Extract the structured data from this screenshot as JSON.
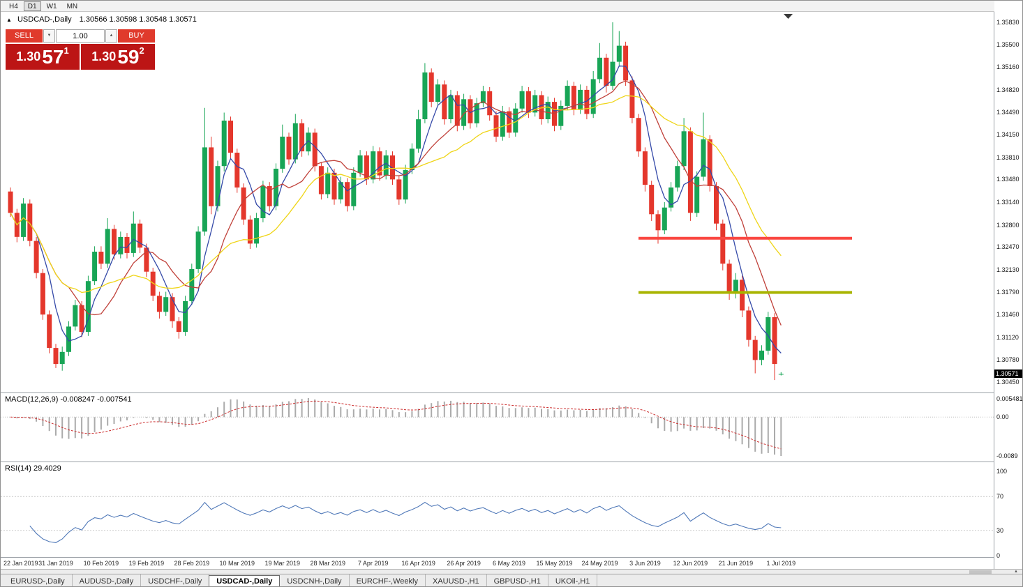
{
  "toolbar": {
    "timeframes": [
      {
        "label": "H4",
        "active": false
      },
      {
        "label": "D1",
        "active": true
      },
      {
        "label": "W1",
        "active": false
      },
      {
        "label": "MN",
        "active": false
      }
    ]
  },
  "chart": {
    "symbol": "USDCAD-,Daily",
    "ohlc": "1.30566 1.30598 1.30548 1.30571",
    "toggle_icon": "▲"
  },
  "trade_panel": {
    "sell_label": "SELL",
    "buy_label": "BUY",
    "volume": "1.00",
    "spinner_down": "▼",
    "spinner_up": "▲",
    "sell_price": {
      "base": "1.30",
      "pips": "57",
      "sup": "1"
    },
    "buy_price": {
      "base": "1.30",
      "pips": "59",
      "sup": "2"
    }
  },
  "price_axis": {
    "labels": [
      "1.35830",
      "1.35500",
      "1.35160",
      "1.34820",
      "1.34490",
      "1.34150",
      "1.33810",
      "1.33480",
      "1.33140",
      "1.32800",
      "1.32470",
      "1.32130",
      "1.31790",
      "1.31460",
      "1.31120",
      "1.30780",
      "1.30450"
    ],
    "current": "1.30571"
  },
  "macd_panel": {
    "label": "MACD(12,26,9)",
    "values": "-0.008247 -0.007541",
    "axis_top": "0.005481",
    "axis_zero": "0.00",
    "axis_bottom": "-0.0089"
  },
  "rsi_panel": {
    "label": "RSI(14)",
    "value": "29.4029",
    "axis": [
      {
        "v": 100,
        "label": "100"
      },
      {
        "v": 70,
        "label": "70"
      },
      {
        "v": 30,
        "label": "30"
      },
      {
        "v": 0,
        "label": "0"
      }
    ],
    "levels": [
      70,
      30
    ]
  },
  "date_axis": {
    "labels": [
      "22 Jan 2019",
      "31 Jan 2019",
      "10 Feb 2019",
      "19 Feb 2019",
      "28 Feb 2019",
      "10 Mar 2019",
      "19 Mar 2019",
      "28 Mar 2019",
      "7 Apr 2019",
      "16 Apr 2019",
      "26 Apr 2019",
      "6 May 2019",
      "15 May 2019",
      "24 May 2019",
      "3 Jun 2019",
      "12 Jun 2019",
      "21 Jun 2019",
      "1 Jul 2019"
    ]
  },
  "tabs": [
    {
      "label": "EURUSD-,Daily",
      "active": false
    },
    {
      "label": "AUDUSD-,Daily",
      "active": false
    },
    {
      "label": "USDCHF-,Daily",
      "active": false
    },
    {
      "label": "USDCAD-,Daily",
      "active": true
    },
    {
      "label": "USDCNH-,Daily",
      "active": false
    },
    {
      "label": "EURCHF-,Weekly",
      "active": false
    },
    {
      "label": "XAUUSD-,H1",
      "active": false
    },
    {
      "label": "GBPUSD-,H1",
      "active": false
    },
    {
      "label": "UKOil-,H1",
      "active": false
    }
  ],
  "misc": {
    "axis_arrow": "▲"
  },
  "chart_data": {
    "type": "candlestick",
    "title": "USDCAD-,Daily",
    "ylim": [
      1.304,
      1.3595
    ],
    "bull_color": "#18a556",
    "bear_color": "#e4372c",
    "moving_averages": [
      {
        "period": 5,
        "color": "#3449a8"
      },
      {
        "period": 10,
        "color": "#c0413a"
      },
      {
        "period": 20,
        "color": "#efd518"
      }
    ],
    "hlines": [
      {
        "price": 1.326,
        "color": "#fa4741",
        "from_bar": 97,
        "to_bar": 130
      },
      {
        "price": 1.3179,
        "color": "#a8b400",
        "from_bar": 97,
        "to_bar": 130
      }
    ],
    "candles": [
      [
        1.333,
        1.3336,
        1.3292,
        1.3298
      ],
      [
        1.3298,
        1.3304,
        1.3254,
        1.3262
      ],
      [
        1.3262,
        1.332,
        1.3256,
        1.3312
      ],
      [
        1.3312,
        1.3318,
        1.3248,
        1.3256
      ],
      [
        1.3256,
        1.3262,
        1.32,
        1.3208
      ],
      [
        1.3208,
        1.3214,
        1.3138,
        1.3146
      ],
      [
        1.3146,
        1.3152,
        1.3088,
        1.3096
      ],
      [
        1.3096,
        1.3102,
        1.3066,
        1.3072
      ],
      [
        1.3072,
        1.3098,
        1.3062,
        1.309
      ],
      [
        1.309,
        1.3136,
        1.3084,
        1.3128
      ],
      [
        1.3128,
        1.3168,
        1.3122,
        1.316
      ],
      [
        1.316,
        1.3166,
        1.3112,
        1.312
      ],
      [
        1.312,
        1.3204,
        1.3114,
        1.3196
      ],
      [
        1.3196,
        1.3248,
        1.319,
        1.324
      ],
      [
        1.324,
        1.3248,
        1.3214,
        1.3222
      ],
      [
        1.3222,
        1.329,
        1.3216,
        1.3274
      ],
      [
        1.3274,
        1.328,
        1.3228,
        1.3236
      ],
      [
        1.3236,
        1.327,
        1.323,
        1.3262
      ],
      [
        1.3262,
        1.3268,
        1.323,
        1.3238
      ],
      [
        1.3238,
        1.33,
        1.3232,
        1.3282
      ],
      [
        1.3282,
        1.3288,
        1.3238,
        1.3246
      ],
      [
        1.3246,
        1.3252,
        1.3202,
        1.321
      ],
      [
        1.321,
        1.3216,
        1.3166,
        1.3174
      ],
      [
        1.3174,
        1.318,
        1.314,
        1.315
      ],
      [
        1.315,
        1.318,
        1.3144,
        1.3172
      ],
      [
        1.3172,
        1.3178,
        1.3126,
        1.3136
      ],
      [
        1.3136,
        1.3142,
        1.311,
        1.312
      ],
      [
        1.312,
        1.3174,
        1.3114,
        1.3166
      ],
      [
        1.3166,
        1.3222,
        1.316,
        1.3214
      ],
      [
        1.3214,
        1.3278,
        1.3208,
        1.327
      ],
      [
        1.327,
        1.3455,
        1.3264,
        1.3396
      ],
      [
        1.3396,
        1.3412,
        1.3296,
        1.3308
      ],
      [
        1.3308,
        1.3376,
        1.33,
        1.3368
      ],
      [
        1.3368,
        1.3448,
        1.336,
        1.3436
      ],
      [
        1.3436,
        1.3442,
        1.338,
        1.3388
      ],
      [
        1.3388,
        1.3394,
        1.3328,
        1.3336
      ],
      [
        1.3336,
        1.3342,
        1.328,
        1.3288
      ],
      [
        1.3288,
        1.3294,
        1.3244,
        1.3252
      ],
      [
        1.3252,
        1.3298,
        1.3246,
        1.329
      ],
      [
        1.329,
        1.3346,
        1.3284,
        1.3338
      ],
      [
        1.3338,
        1.3344,
        1.33,
        1.3308
      ],
      [
        1.3308,
        1.3372,
        1.3302,
        1.3364
      ],
      [
        1.3364,
        1.343,
        1.3358,
        1.3412
      ],
      [
        1.3412,
        1.3418,
        1.337,
        1.3378
      ],
      [
        1.3378,
        1.3446,
        1.3372,
        1.3432
      ],
      [
        1.3432,
        1.3438,
        1.3382,
        1.339
      ],
      [
        1.339,
        1.3426,
        1.3384,
        1.3418
      ],
      [
        1.3418,
        1.3424,
        1.336,
        1.3368
      ],
      [
        1.3368,
        1.3374,
        1.3318,
        1.3326
      ],
      [
        1.3326,
        1.3366,
        1.332,
        1.3358
      ],
      [
        1.3358,
        1.3364,
        1.331,
        1.3318
      ],
      [
        1.3318,
        1.3352,
        1.3312,
        1.3344
      ],
      [
        1.3344,
        1.335,
        1.33,
        1.3308
      ],
      [
        1.3308,
        1.3366,
        1.3302,
        1.3358
      ],
      [
        1.3358,
        1.3392,
        1.3352,
        1.3384
      ],
      [
        1.3384,
        1.339,
        1.334,
        1.3348
      ],
      [
        1.3348,
        1.3398,
        1.3342,
        1.339
      ],
      [
        1.339,
        1.3396,
        1.3346,
        1.3354
      ],
      [
        1.3354,
        1.3392,
        1.3348,
        1.3384
      ],
      [
        1.3384,
        1.339,
        1.334,
        1.3348
      ],
      [
        1.3348,
        1.3354,
        1.331,
        1.3318
      ],
      [
        1.3318,
        1.337,
        1.3312,
        1.3362
      ],
      [
        1.3362,
        1.3402,
        1.3356,
        1.3394
      ],
      [
        1.3394,
        1.3452,
        1.3388,
        1.3438
      ],
      [
        1.3438,
        1.3522,
        1.3432,
        1.3508
      ],
      [
        1.3508,
        1.3514,
        1.3456,
        1.3464
      ],
      [
        1.3464,
        1.3498,
        1.3458,
        1.349
      ],
      [
        1.349,
        1.3496,
        1.343,
        1.3438
      ],
      [
        1.3438,
        1.3482,
        1.3432,
        1.3474
      ],
      [
        1.3474,
        1.348,
        1.342,
        1.3428
      ],
      [
        1.3428,
        1.3476,
        1.3422,
        1.3468
      ],
      [
        1.3468,
        1.3474,
        1.3424,
        1.3432
      ],
      [
        1.3432,
        1.347,
        1.3426,
        1.3462
      ],
      [
        1.3462,
        1.3488,
        1.3456,
        1.348
      ],
      [
        1.348,
        1.3486,
        1.3436,
        1.3444
      ],
      [
        1.3444,
        1.345,
        1.3404,
        1.3412
      ],
      [
        1.3412,
        1.3458,
        1.3406,
        1.345
      ],
      [
        1.345,
        1.3456,
        1.341,
        1.3418
      ],
      [
        1.3418,
        1.3462,
        1.3412,
        1.3454
      ],
      [
        1.3454,
        1.3488,
        1.3448,
        1.348
      ],
      [
        1.348,
        1.3486,
        1.344,
        1.3448
      ],
      [
        1.3448,
        1.3482,
        1.3442,
        1.3474
      ],
      [
        1.3474,
        1.348,
        1.343,
        1.3438
      ],
      [
        1.3438,
        1.3472,
        1.3432,
        1.3464
      ],
      [
        1.3464,
        1.347,
        1.342,
        1.3428
      ],
      [
        1.3428,
        1.3466,
        1.3422,
        1.3458
      ],
      [
        1.3458,
        1.3496,
        1.3452,
        1.3488
      ],
      [
        1.3488,
        1.3494,
        1.3444,
        1.3452
      ],
      [
        1.3452,
        1.349,
        1.3446,
        1.3482
      ],
      [
        1.3482,
        1.3488,
        1.3438,
        1.3446
      ],
      [
        1.3446,
        1.351,
        1.344,
        1.3498
      ],
      [
        1.3498,
        1.3552,
        1.3492,
        1.353
      ],
      [
        1.353,
        1.3536,
        1.3478,
        1.3488
      ],
      [
        1.3488,
        1.3583,
        1.3482,
        1.3524
      ],
      [
        1.3524,
        1.357,
        1.3518,
        1.3548
      ],
      [
        1.3548,
        1.3554,
        1.3488,
        1.3496
      ],
      [
        1.3496,
        1.3502,
        1.3432,
        1.344
      ],
      [
        1.344,
        1.3446,
        1.3382,
        1.339
      ],
      [
        1.339,
        1.3396,
        1.333,
        1.334
      ],
      [
        1.334,
        1.3346,
        1.3286,
        1.3296
      ],
      [
        1.3296,
        1.3302,
        1.3252,
        1.3272
      ],
      [
        1.3272,
        1.3314,
        1.3266,
        1.3306
      ],
      [
        1.3306,
        1.3344,
        1.33,
        1.3336
      ],
      [
        1.3336,
        1.3376,
        1.333,
        1.3368
      ],
      [
        1.3368,
        1.344,
        1.3362,
        1.342
      ],
      [
        1.342,
        1.3426,
        1.3286,
        1.3298
      ],
      [
        1.3298,
        1.336,
        1.3292,
        1.3352
      ],
      [
        1.3352,
        1.3448,
        1.3346,
        1.3408
      ],
      [
        1.3408,
        1.3414,
        1.333,
        1.3338
      ],
      [
        1.3338,
        1.3344,
        1.3272,
        1.3282
      ],
      [
        1.3282,
        1.3288,
        1.3212,
        1.3222
      ],
      [
        1.3222,
        1.3228,
        1.3168,
        1.3178
      ],
      [
        1.3178,
        1.3208,
        1.317,
        1.3198
      ],
      [
        1.3198,
        1.3204,
        1.3142,
        1.3152
      ],
      [
        1.3152,
        1.3158,
        1.3098,
        1.3108
      ],
      [
        1.3108,
        1.3114,
        1.3058,
        1.3078
      ],
      [
        1.3078,
        1.31,
        1.307,
        1.3092
      ],
      [
        1.3092,
        1.315,
        1.3086,
        1.3142
      ],
      [
        1.3142,
        1.3148,
        1.3048,
        1.3072
      ],
      [
        1.30566,
        1.30598,
        1.30548,
        1.30571
      ]
    ]
  }
}
